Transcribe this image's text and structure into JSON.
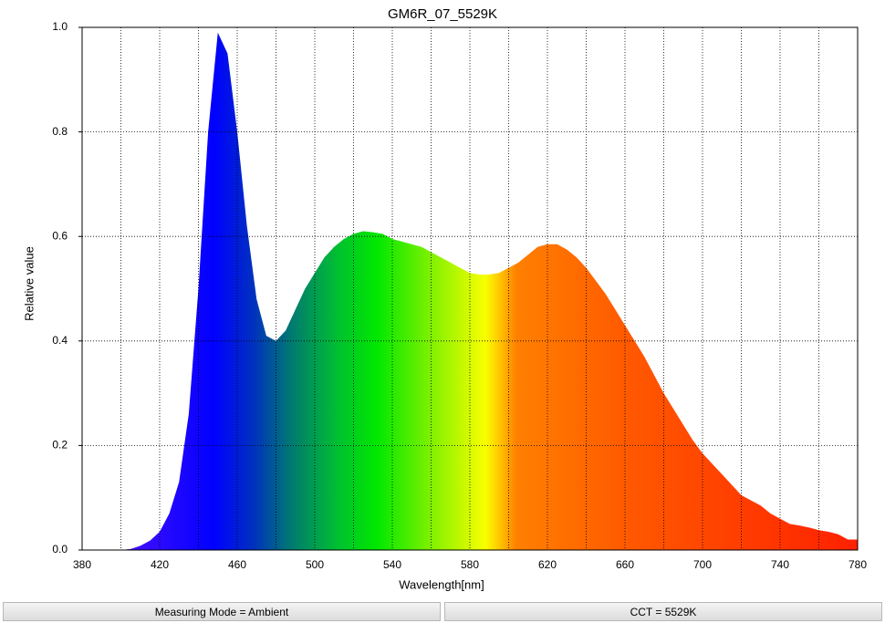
{
  "chart_data": {
    "type": "area",
    "title": "GM6R_07_5529K",
    "x_label": "Wavelength[nm]",
    "y_label": "Relative value",
    "x": [
      380,
      385,
      390,
      395,
      400,
      405,
      410,
      415,
      420,
      425,
      430,
      435,
      440,
      445,
      450,
      455,
      460,
      465,
      470,
      475,
      480,
      485,
      490,
      495,
      500,
      505,
      510,
      515,
      520,
      525,
      530,
      535,
      540,
      545,
      550,
      555,
      560,
      565,
      570,
      575,
      580,
      585,
      590,
      595,
      600,
      605,
      610,
      615,
      620,
      625,
      630,
      635,
      640,
      645,
      650,
      655,
      660,
      665,
      670,
      675,
      680,
      685,
      690,
      695,
      700,
      705,
      710,
      715,
      720,
      725,
      730,
      735,
      740,
      745,
      750,
      755,
      760,
      765,
      770,
      775,
      780
    ],
    "values": [
      0,
      0,
      0,
      0,
      0,
      0.002,
      0.008,
      0.018,
      0.035,
      0.07,
      0.13,
      0.26,
      0.5,
      0.8,
      0.99,
      0.95,
      0.8,
      0.62,
      0.48,
      0.41,
      0.4,
      0.42,
      0.46,
      0.5,
      0.53,
      0.56,
      0.58,
      0.595,
      0.605,
      0.61,
      0.608,
      0.605,
      0.595,
      0.59,
      0.585,
      0.58,
      0.57,
      0.56,
      0.55,
      0.54,
      0.53,
      0.527,
      0.527,
      0.53,
      0.54,
      0.55,
      0.565,
      0.58,
      0.585,
      0.585,
      0.575,
      0.56,
      0.54,
      0.515,
      0.49,
      0.46,
      0.43,
      0.4,
      0.37,
      0.335,
      0.3,
      0.27,
      0.24,
      0.21,
      0.185,
      0.165,
      0.145,
      0.125,
      0.105,
      0.095,
      0.085,
      0.07,
      0.06,
      0.05,
      0.047,
      0.043,
      0.038,
      0.035,
      0.03,
      0.02,
      0.02
    ],
    "xlim": [
      380,
      780
    ],
    "ylim": [
      0,
      1
    ],
    "xticks": [
      380,
      420,
      460,
      500,
      540,
      580,
      620,
      660,
      700,
      740,
      780
    ],
    "x_minor_grid": [
      400,
      440,
      480,
      520,
      560,
      600,
      640,
      680,
      720,
      760
    ],
    "yticks": [
      {
        "value": 0,
        "label": "0.0"
      },
      0.2,
      0.4,
      0.6,
      0.8,
      {
        "value": 1,
        "label": "1.0"
      }
    ],
    "grid": true
  },
  "status_bar": {
    "measuring_mode": "Measuring Mode = Ambient",
    "cct": "CCT = 5529K"
  }
}
